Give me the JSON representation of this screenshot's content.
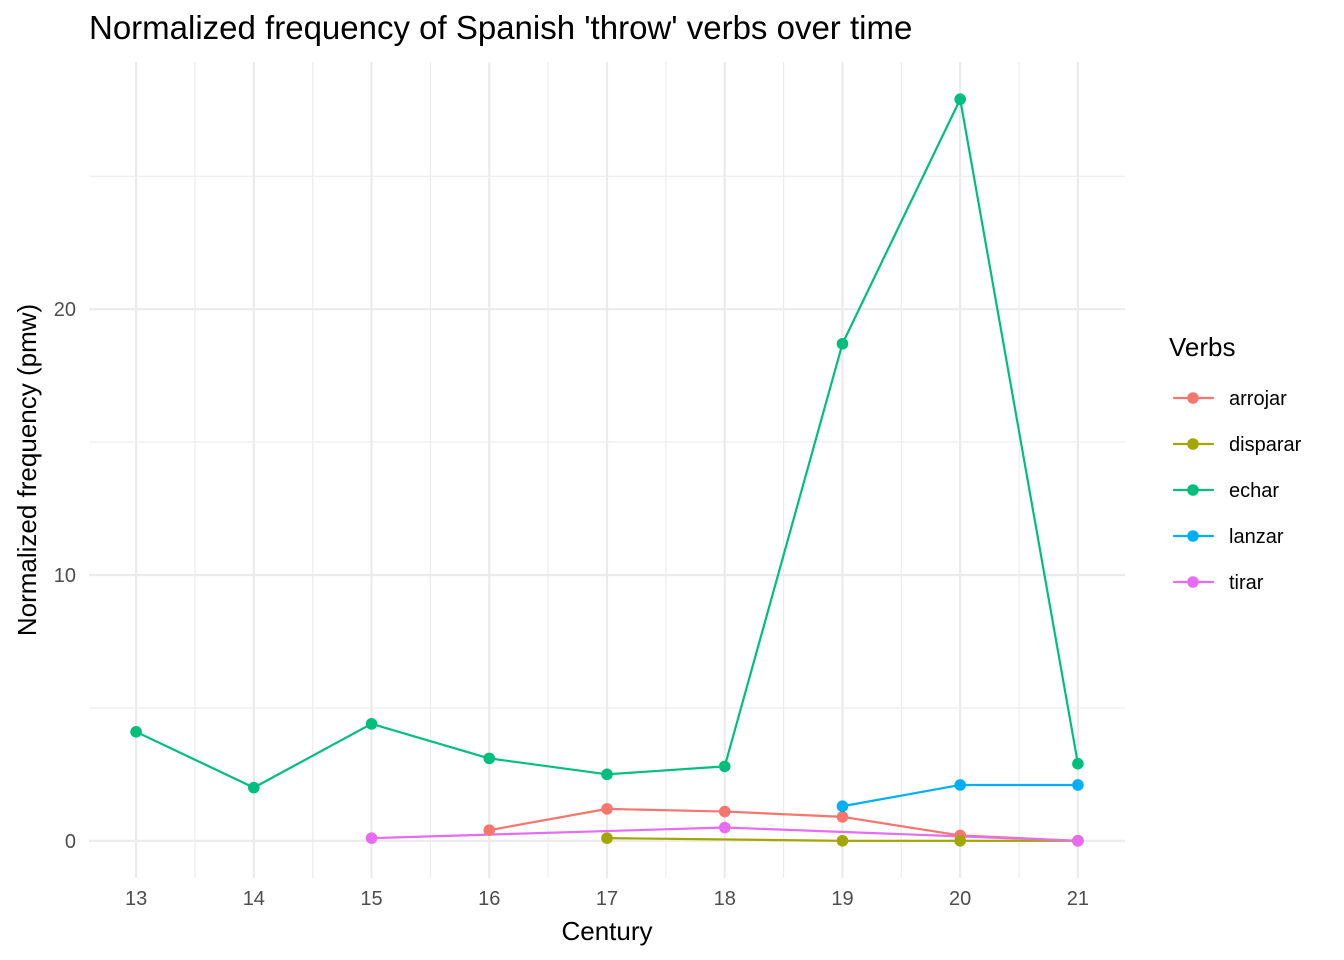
{
  "chart_data": {
    "type": "line",
    "title": "Normalized frequency of Spanish 'throw' verbs over time",
    "xlabel": "Century",
    "ylabel": "Normalized frequency (pmw)",
    "legend": {
      "title": "Verbs",
      "placement": "right"
    },
    "grid": true,
    "xlim": [
      12.6,
      21.4
    ],
    "ylim": [
      -1.4,
      29.3
    ],
    "x_ticks": [
      13,
      14,
      15,
      16,
      17,
      18,
      19,
      20,
      21
    ],
    "x_tick_labels": [
      "13",
      "14",
      "15",
      "16",
      "17",
      "18",
      "19",
      "20",
      "21"
    ],
    "y_ticks": [
      0,
      10,
      20
    ],
    "y_tick_labels": [
      "0",
      "10",
      "20"
    ],
    "y_minor_ticks": [
      5,
      15,
      25
    ],
    "x_minor_ticks": [
      13.5,
      14.5,
      15.5,
      16.5,
      17.5,
      18.5,
      19.5,
      20.5
    ],
    "series": [
      {
        "name": "arrojar",
        "color": "#F8766D",
        "x": [
          16,
          17,
          18,
          19,
          20,
          21
        ],
        "values": [
          0.4,
          1.2,
          1.1,
          0.9,
          0.2,
          0.0
        ]
      },
      {
        "name": "disparar",
        "color": "#A3A500",
        "x": [
          17,
          19,
          20,
          21
        ],
        "values": [
          0.1,
          0.0,
          0.0,
          0.0
        ]
      },
      {
        "name": "echar",
        "color": "#00BF7D",
        "x": [
          13,
          14,
          15,
          16,
          17,
          18,
          19,
          20,
          21
        ],
        "values": [
          4.1,
          2.0,
          4.4,
          3.1,
          2.5,
          2.8,
          18.7,
          27.9,
          2.9
        ]
      },
      {
        "name": "lanzar",
        "color": "#00B0F6",
        "x": [
          19,
          20,
          21
        ],
        "values": [
          1.3,
          2.1,
          2.1
        ]
      },
      {
        "name": "tirar",
        "color": "#E76BF3",
        "x": [
          15,
          18,
          21
        ],
        "values": [
          0.1,
          0.5,
          0.0
        ]
      }
    ]
  }
}
